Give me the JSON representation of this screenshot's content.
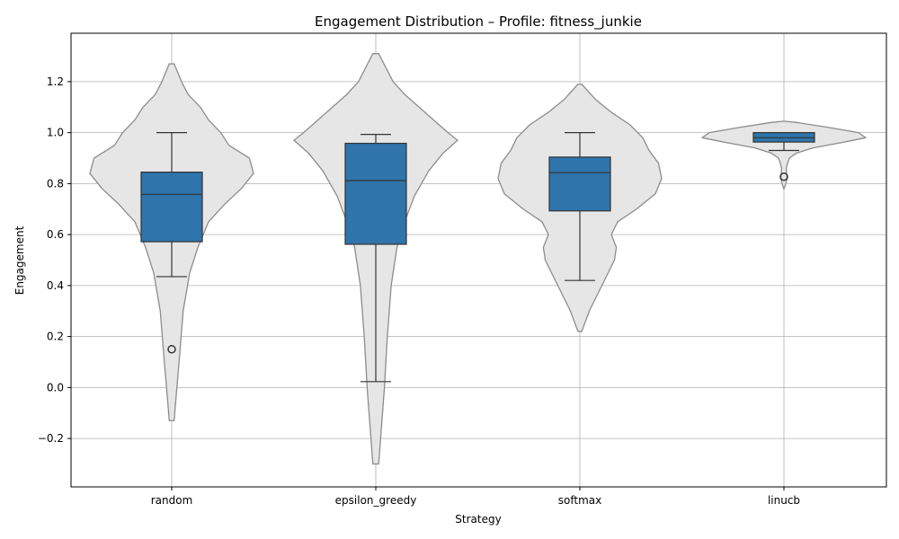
{
  "chart_data": {
    "type": "violin+box",
    "title": "Engagement Distribution – Profile: fitness_junkie",
    "xlabel": "Strategy",
    "ylabel": "Engagement",
    "ylim": [
      -0.39,
      1.39
    ],
    "yticks": [
      -0.2,
      0.0,
      0.2,
      0.4,
      0.6,
      0.8,
      1.0,
      1.2
    ],
    "ytick_labels": [
      "−0.2",
      "0.0",
      "0.2",
      "0.4",
      "0.6",
      "0.8",
      "1.0",
      "1.2"
    ],
    "grid": true,
    "colors": {
      "box": "#2f74ab",
      "violin_fill": "#e6e6e6",
      "violin_edge": "#8c8c8c",
      "grid": "#b0b0b0",
      "line": "#333333"
    },
    "categories": [
      "random",
      "epsilon_greedy",
      "softmax",
      "linucb"
    ],
    "boxes": [
      {
        "category": "random",
        "whisker_low": 0.435,
        "q1": 0.572,
        "median": 0.758,
        "q3": 0.845,
        "whisker_high": 1.0,
        "outliers": [
          0.15
        ]
      },
      {
        "category": "epsilon_greedy",
        "whisker_low": 0.023,
        "q1": 0.562,
        "median": 0.812,
        "q3": 0.958,
        "whisker_high": 0.993,
        "outliers": []
      },
      {
        "category": "softmax",
        "whisker_low": 0.42,
        "q1": 0.693,
        "median": 0.843,
        "q3": 0.904,
        "whisker_high": 1.0,
        "outliers": []
      },
      {
        "category": "linucb",
        "whisker_low": 0.93,
        "q1": 0.963,
        "median": 0.98,
        "q3": 1.0,
        "whisker_high": 1.0,
        "outliers": [
          0.827
        ]
      }
    ],
    "violins": [
      {
        "category": "random",
        "profile": [
          [
            -0.13,
            0.3
          ],
          [
            -0.05,
            0.5
          ],
          [
            0.1,
            0.9
          ],
          [
            0.3,
            1.4
          ],
          [
            0.45,
            2.2
          ],
          [
            0.55,
            3.2
          ],
          [
            0.65,
            4.5
          ],
          [
            0.72,
            6.5
          ],
          [
            0.78,
            8.5
          ],
          [
            0.84,
            10.0
          ],
          [
            0.9,
            9.5
          ],
          [
            0.95,
            7.0
          ],
          [
            1.0,
            6.0
          ],
          [
            1.05,
            4.5
          ],
          [
            1.1,
            3.5
          ],
          [
            1.15,
            2.0
          ],
          [
            1.2,
            1.2
          ],
          [
            1.27,
            0.3
          ]
        ]
      },
      {
        "category": "epsilon_greedy",
        "profile": [
          [
            -0.3,
            0.3
          ],
          [
            -0.15,
            0.6
          ],
          [
            0.0,
            0.9
          ],
          [
            0.2,
            1.2
          ],
          [
            0.4,
            1.6
          ],
          [
            0.55,
            2.2
          ],
          [
            0.65,
            3.0
          ],
          [
            0.75,
            4.0
          ],
          [
            0.85,
            5.5
          ],
          [
            0.92,
            7.0
          ],
          [
            0.97,
            8.5
          ],
          [
            1.0,
            7.5
          ],
          [
            1.05,
            6.0
          ],
          [
            1.1,
            4.5
          ],
          [
            1.15,
            3.0
          ],
          [
            1.2,
            1.8
          ],
          [
            1.31,
            0.3
          ]
        ]
      },
      {
        "category": "softmax",
        "profile": [
          [
            0.22,
            0.3
          ],
          [
            0.3,
            1.5
          ],
          [
            0.4,
            3.5
          ],
          [
            0.5,
            5.5
          ],
          [
            0.55,
            5.8
          ],
          [
            0.6,
            5.0
          ],
          [
            0.65,
            6.0
          ],
          [
            0.7,
            9.0
          ],
          [
            0.76,
            12.0
          ],
          [
            0.82,
            13.0
          ],
          [
            0.88,
            12.5
          ],
          [
            0.93,
            11.0
          ],
          [
            0.98,
            10.0
          ],
          [
            1.03,
            8.0
          ],
          [
            1.08,
            5.0
          ],
          [
            1.13,
            2.5
          ],
          [
            1.19,
            0.3
          ]
        ]
      },
      {
        "category": "linucb",
        "profile": [
          [
            0.78,
            0.3
          ],
          [
            0.8,
            2.0
          ],
          [
            0.82,
            3.5
          ],
          [
            0.84,
            3.0
          ],
          [
            0.86,
            2.5
          ],
          [
            0.88,
            4.0
          ],
          [
            0.9,
            6.0
          ],
          [
            0.92,
            14.0
          ],
          [
            0.94,
            32.0
          ],
          [
            0.96,
            62.0
          ],
          [
            0.98,
            90.0
          ],
          [
            1.0,
            82.0
          ],
          [
            1.02,
            50.0
          ],
          [
            1.04,
            14.0
          ],
          [
            1.045,
            0.3
          ]
        ]
      }
    ]
  }
}
